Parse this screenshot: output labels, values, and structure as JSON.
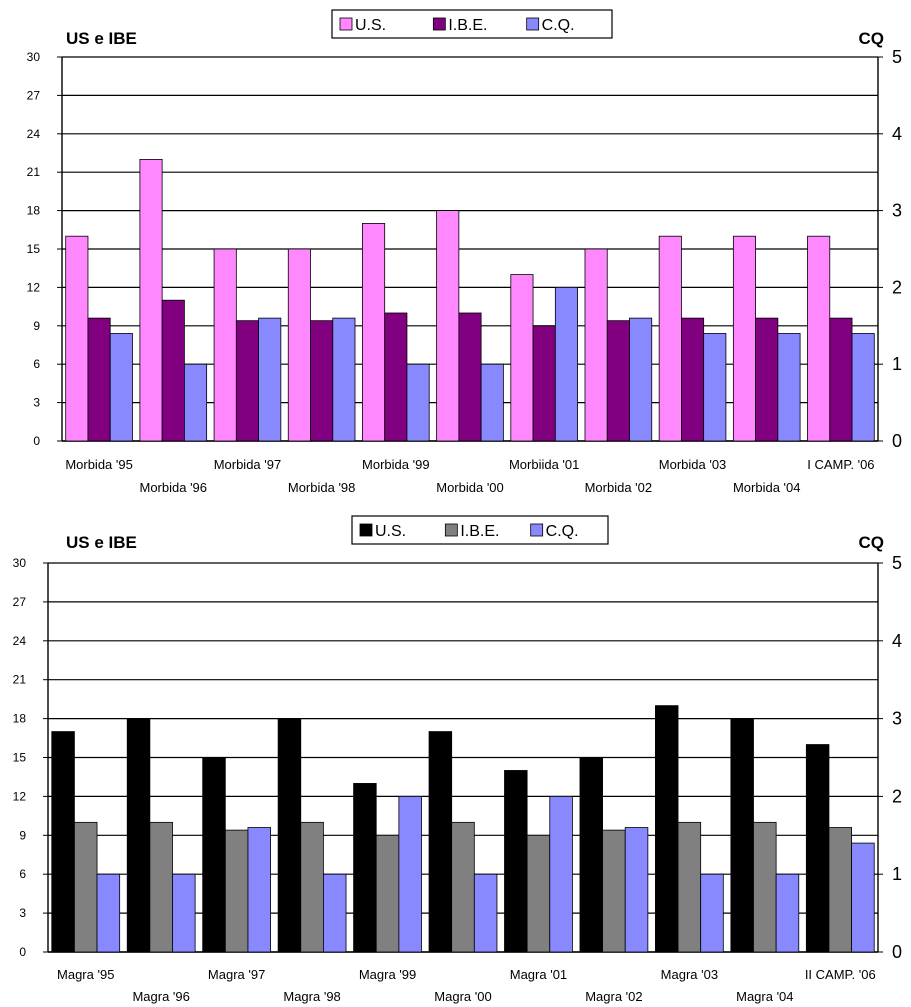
{
  "chart_data": [
    {
      "type": "bar",
      "left_axis_title": "US e IBE",
      "right_axis_title": "CQ",
      "categories": [
        "Morbida '95",
        "Morbida '96",
        "Morbida '97",
        "Morbida '98",
        "Morbida '99",
        "Morbida '00",
        "Morbiida '01",
        "Morbida '02",
        "Morbida '03",
        "Morbida '04",
        "I CAMP. '06"
      ],
      "series": [
        {
          "name": "U.S.",
          "axis": "left",
          "color": "#ff88ff",
          "values": [
            16,
            22,
            15,
            15,
            17,
            18,
            13,
            15,
            16,
            16,
            16
          ]
        },
        {
          "name": "I.B.E.",
          "axis": "left",
          "color": "#800080",
          "values": [
            9.6,
            11,
            9.4,
            9.4,
            10,
            10,
            9,
            9.4,
            9.6,
            9.6,
            9.6
          ]
        },
        {
          "name": "C.Q.",
          "axis": "right",
          "color": "#8888ff",
          "values": [
            1.4,
            1.0,
            1.6,
            1.6,
            1.0,
            1.0,
            2.0,
            1.6,
            1.4,
            1.4,
            1.4
          ]
        }
      ],
      "ylim_left": [
        0,
        30
      ],
      "yticks_left": [
        "0",
        "3",
        "6",
        "9",
        "12",
        "15",
        "18",
        "21",
        "24",
        "27",
        "30"
      ],
      "ylim_right": [
        0,
        5
      ],
      "yticks_right": [
        "0",
        "1",
        "2",
        "3",
        "4",
        "5"
      ],
      "grid": true,
      "legend": "top-center"
    },
    {
      "type": "bar",
      "left_axis_title": "US e IBE",
      "right_axis_title": "CQ",
      "categories": [
        "Magra '95",
        "Magra '96",
        "Magra '97",
        "Magra '98",
        "Magra '99",
        "Magra '00",
        "Magra '01",
        "Magra '02",
        "Magra '03",
        "Magra '04",
        "II CAMP. '06"
      ],
      "series": [
        {
          "name": "U.S.",
          "axis": "left",
          "color": "#000000",
          "values": [
            17,
            18,
            15,
            18,
            13,
            17,
            14,
            15,
            19,
            18,
            16
          ]
        },
        {
          "name": "I.B.E.",
          "axis": "left",
          "color": "#808080",
          "values": [
            10,
            10,
            9.4,
            10,
            9,
            10,
            9,
            9.4,
            10,
            10,
            9.6
          ]
        },
        {
          "name": "C.Q.",
          "axis": "right",
          "color": "#8888ff",
          "values": [
            1.0,
            1.0,
            1.6,
            1.0,
            2.0,
            1.0,
            2.0,
            1.6,
            1.0,
            1.0,
            1.4
          ]
        }
      ],
      "ylim_left": [
        0,
        30
      ],
      "yticks_left": [
        "0",
        "3",
        "6",
        "9",
        "12",
        "15",
        "18",
        "21",
        "24",
        "27",
        "30"
      ],
      "ylim_right": [
        0,
        5
      ],
      "yticks_right": [
        "0",
        "1",
        "2",
        "3",
        "4",
        "5"
      ],
      "grid": true,
      "legend": "top-center"
    }
  ]
}
